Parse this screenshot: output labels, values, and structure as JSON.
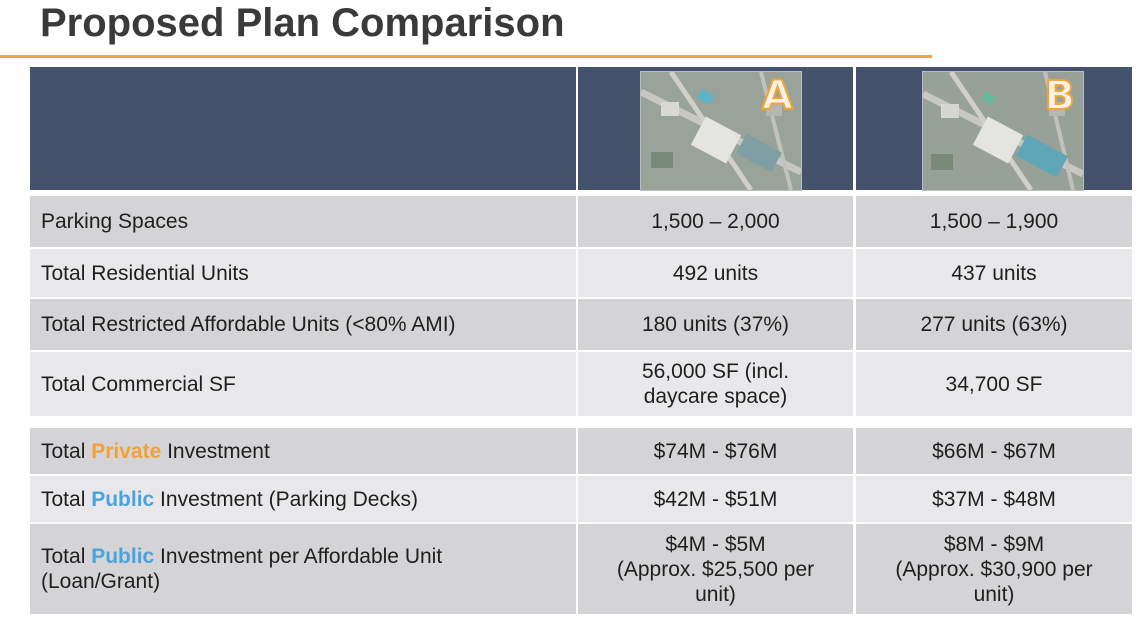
{
  "title": "Proposed Plan Comparison",
  "plans": [
    {
      "letter": "A",
      "icon": "site-map-image"
    },
    {
      "letter": "B",
      "icon": "site-map-image"
    }
  ],
  "rows": [
    {
      "label": "Parking Spaces",
      "a": "1,500 – 2,000",
      "b": "1,500 – 1,900"
    },
    {
      "label": "Total Residential Units",
      "a": "492 units",
      "b": "437 units"
    },
    {
      "label": "Total Restricted Affordable Units (<80% AMI)",
      "a": "180 units (37%)",
      "b": "277 units (63%)"
    },
    {
      "label": "Total Commercial SF",
      "a": "56,000 SF (incl. daycare space)",
      "b": "34,700 SF"
    },
    {
      "label_pre": "Total ",
      "label_hl": "Private",
      "label_post": " Investment",
      "a": "$74M - $76M",
      "b": "$66M - $67M"
    },
    {
      "label_pre": "Total ",
      "label_hl": "Public",
      "label_post": " Investment (Parking Decks)",
      "a": "$42M - $51M",
      "b": "$37M - $48M"
    },
    {
      "label_pre": "Total ",
      "label_hl": "Public",
      "label_post": " Investment per Affordable Unit (Loan/Grant)",
      "a_line1": "$4M - $5M",
      "a_line2": "(Approx. $25,500 per unit)",
      "b_line1": "$8M - $9M",
      "b_line2": "(Approx. $30,900 per unit)"
    }
  ],
  "colors": {
    "header": "#44536b",
    "accent_orange": "#f0a535",
    "accent_blue": "#4aa3df"
  }
}
